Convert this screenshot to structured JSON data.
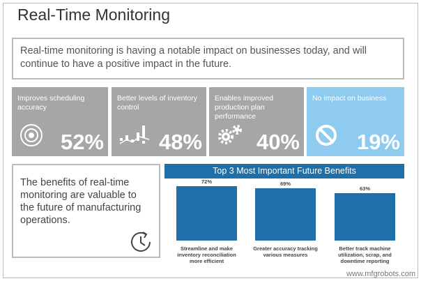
{
  "header": {
    "title": "Real-Time Monitoring"
  },
  "intro": "Real-time monitoring is having a notable impact on businesses today, and will continue to have a positive impact in the future.",
  "stats": [
    {
      "label": "Improves scheduling accuracy",
      "value": "52%"
    },
    {
      "label": "Better levels of inventory control",
      "value": "48%"
    },
    {
      "label": "Enables improved production plan performance",
      "value": "40%"
    },
    {
      "label": "No impact on business",
      "value": "19%"
    }
  ],
  "callout": "The benefits of real-time monitoring are valuable to the future of manufacturing operations.",
  "chart_data": {
    "type": "bar",
    "title": "Top 3 Most Important Future Benefits",
    "categories": [
      "Streamline and make inventory reconciliation more efficient",
      "Greater accuracy tracking various measures",
      "Better track machine utilization, scrap, and downtime reporting"
    ],
    "values": [
      72,
      69,
      63
    ],
    "value_labels": [
      "72%",
      "69%",
      "63%"
    ],
    "color": "#1f6fa8"
  },
  "watermark": "www.mfgrobots.com"
}
